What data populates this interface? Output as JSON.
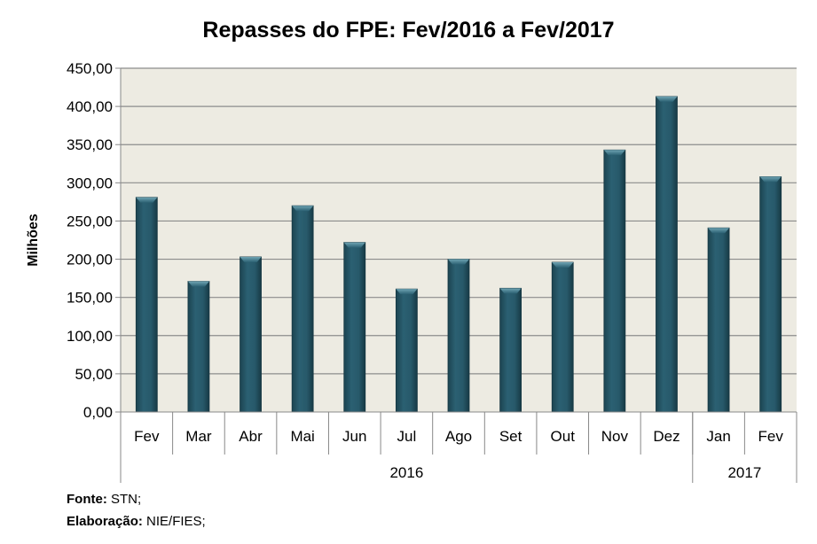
{
  "chart_data": {
    "type": "bar",
    "title": "Repasses do FPE: Fev/2016 a Fev/2017",
    "ylabel": "Milhões",
    "xlabel": "",
    "ylim": [
      0,
      450
    ],
    "ytick_step": 50,
    "yticks": [
      "0,00",
      "50,00",
      "100,00",
      "150,00",
      "200,00",
      "250,00",
      "300,00",
      "350,00",
      "400,00",
      "450,00"
    ],
    "categories": [
      "Fev",
      "Mar",
      "Abr",
      "Mai",
      "Jun",
      "Jul",
      "Ago",
      "Set",
      "Out",
      "Nov",
      "Dez",
      "Jan",
      "Fev"
    ],
    "groups": [
      {
        "label": "2016",
        "count": 11
      },
      {
        "label": "2017",
        "count": 2
      }
    ],
    "values": [
      281,
      171,
      203,
      270,
      222,
      161,
      200,
      162,
      196,
      343,
      413,
      241,
      308
    ],
    "grid": true,
    "legend": "none",
    "colors": {
      "bar": "#27596a",
      "plot_bg": "#edebe2",
      "grid": "#8c8c8c"
    }
  },
  "footer": {
    "source_label": "Fonte:",
    "source_value": "STN;",
    "author_label": "Elaboração:",
    "author_value": "NIE/FIES;"
  }
}
